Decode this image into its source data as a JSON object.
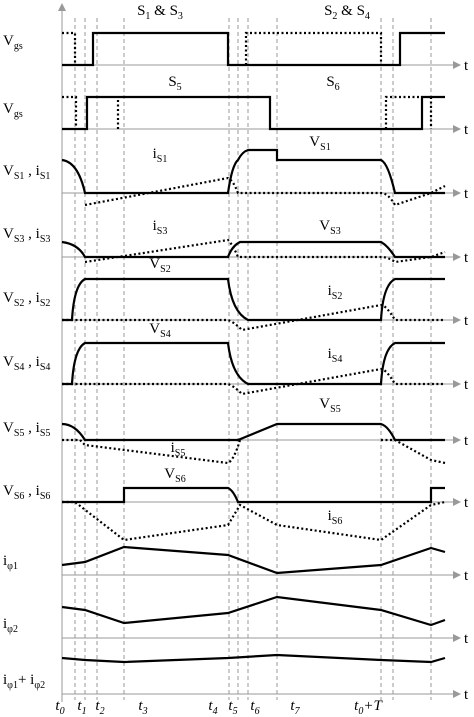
{
  "gate_labels": [
    [
      "S",
      "1",
      " & S",
      "3"
    ],
    [
      "S",
      "2",
      " & S",
      "4"
    ],
    [
      "S",
      "5"
    ],
    [
      "S",
      "6"
    ]
  ],
  "rows": [
    {
      "label": [
        "V",
        "gs"
      ]
    },
    {
      "label": [
        "V",
        "gs"
      ]
    },
    {
      "label": [
        "V",
        "S1",
        " , i",
        "S1"
      ]
    },
    {
      "label": [
        "V",
        "S3",
        " , i",
        "S3"
      ]
    },
    {
      "label": [
        "V",
        "S2",
        " , i",
        "S2"
      ]
    },
    {
      "label": [
        "V",
        "S4",
        " , i",
        "S4"
      ]
    },
    {
      "label": [
        "V",
        "S5",
        " , i",
        "S5"
      ]
    },
    {
      "label": [
        "V",
        "S6",
        " , i",
        "S6"
      ]
    },
    {
      "label": [
        "i",
        "φ1"
      ]
    },
    {
      "label": [
        "i",
        "φ2"
      ]
    },
    {
      "label": [
        "i",
        "φ1",
        "+ i",
        "φ2"
      ]
    }
  ],
  "axis_label": "t",
  "waveform_labels": [
    [
      "i",
      "S1"
    ],
    [
      "V",
      "S1"
    ],
    [
      "i",
      "S3"
    ],
    [
      "V",
      "S3"
    ],
    [
      "V",
      "S2"
    ],
    [
      "i",
      "S2"
    ],
    [
      "V",
      "S4"
    ],
    [
      "i",
      "S4"
    ],
    [
      "i",
      "S5"
    ],
    [
      "V",
      "S5"
    ],
    [
      "V",
      "S6"
    ],
    [
      "i",
      "S6"
    ]
  ],
  "time_labels": [
    [
      "t",
      "0"
    ],
    [
      "t",
      "1"
    ],
    [
      "t",
      "2"
    ],
    [
      "t",
      "3"
    ],
    [
      "t",
      "4"
    ],
    [
      "t",
      "5"
    ],
    [
      "t",
      "6"
    ],
    [
      "t",
      "7"
    ],
    [
      "t",
      "0",
      "+T"
    ]
  ]
}
